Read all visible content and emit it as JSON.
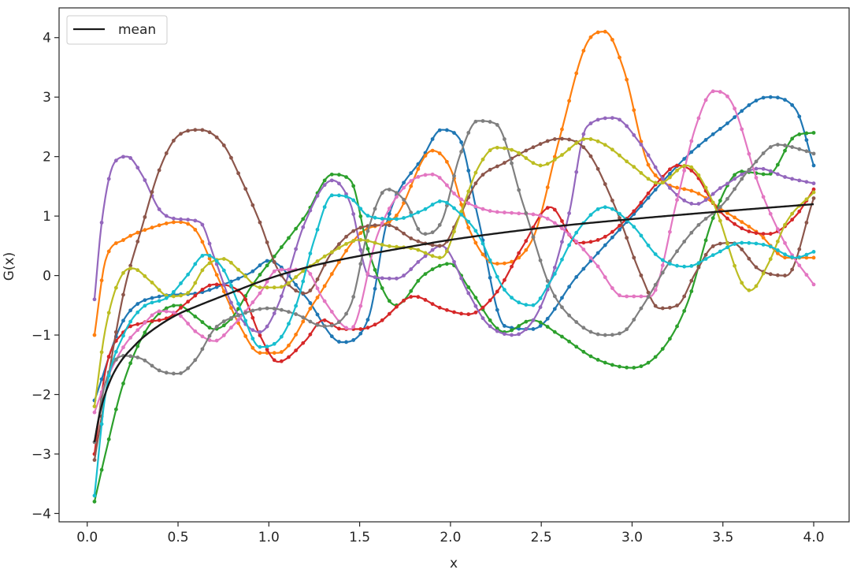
{
  "chart_data": {
    "type": "line",
    "title": "",
    "xlabel": "x",
    "ylabel": "G(x)",
    "xlim": [
      -0.155,
      4.195
    ],
    "ylim": [
      -4.14,
      4.5
    ],
    "xticks": [
      0.0,
      0.5,
      1.0,
      1.5,
      2.0,
      2.5,
      3.0,
      3.5,
      4.0
    ],
    "yticks": [
      -4,
      -3,
      -2,
      -1,
      0,
      1,
      2,
      3,
      4
    ],
    "xtick_labels": [
      "0.0",
      "0.5",
      "1.0",
      "1.5",
      "2.0",
      "2.5",
      "3.0",
      "3.5",
      "4.0"
    ],
    "ytick_labels": [
      "−4",
      "−3",
      "−2",
      "−1",
      "0",
      "1",
      "2",
      "3",
      "4"
    ],
    "grid": false,
    "legend": {
      "location": "top-left",
      "entries": [
        "mean"
      ]
    },
    "mean": {
      "name": "mean",
      "color": "#1a1a1a",
      "x": [
        0.04,
        0.06,
        0.08,
        0.1,
        0.13,
        0.16,
        0.2,
        0.25,
        0.3,
        0.4,
        0.5,
        0.6,
        0.8,
        1.0,
        1.25,
        1.5,
        1.75,
        2.0,
        2.5,
        3.0,
        3.5,
        4.0
      ],
      "y": [
        -2.8,
        -2.45,
        -2.18,
        -1.98,
        -1.74,
        -1.56,
        -1.38,
        -1.21,
        -1.06,
        -0.83,
        -0.65,
        -0.52,
        -0.28,
        -0.05,
        0.17,
        0.33,
        0.47,
        0.6,
        0.8,
        0.95,
        1.08,
        1.2
      ]
    },
    "series": [
      {
        "color": "#1f77b4",
        "x": [
          0.04,
          0.2,
          0.4,
          0.6,
          0.75,
          0.9,
          1.0,
          1.2,
          1.4,
          1.55,
          1.65,
          1.85,
          1.95,
          2.05,
          2.15,
          2.3,
          2.45,
          2.7,
          3.0,
          3.3,
          3.5,
          3.75,
          3.9,
          4.0
        ],
        "y": [
          -2.1,
          -0.75,
          -0.35,
          -0.3,
          -0.15,
          0.05,
          0.25,
          -0.35,
          -1.12,
          -0.7,
          0.9,
          2.0,
          2.45,
          2.3,
          1.0,
          -0.85,
          -0.9,
          0.0,
          1.0,
          2.0,
          2.5,
          3.0,
          2.8,
          1.85
        ]
      },
      {
        "color": "#ff7f0e",
        "x": [
          0.04,
          0.1,
          0.2,
          0.35,
          0.5,
          0.6,
          0.7,
          0.85,
          0.95,
          1.05,
          1.25,
          1.5,
          1.7,
          1.9,
          2.0,
          2.1,
          2.25,
          2.45,
          2.6,
          2.75,
          2.85,
          2.95,
          3.1,
          3.35,
          3.5,
          3.7,
          3.85,
          4.0
        ],
        "y": [
          -1.0,
          0.25,
          0.6,
          0.8,
          0.9,
          0.75,
          0.1,
          -0.9,
          -1.3,
          -1.3,
          -0.45,
          0.7,
          1.0,
          2.1,
          1.8,
          0.8,
          0.2,
          0.6,
          2.3,
          3.9,
          4.1,
          3.5,
          1.8,
          1.4,
          1.1,
          0.7,
          0.3,
          0.3
        ]
      },
      {
        "color": "#2ca02c",
        "x": [
          0.04,
          0.1,
          0.2,
          0.35,
          0.5,
          0.6,
          0.7,
          0.8,
          0.9,
          1.05,
          1.2,
          1.35,
          1.45,
          1.55,
          1.7,
          1.85,
          2.0,
          2.1,
          2.3,
          2.45,
          2.6,
          2.8,
          3.0,
          3.15,
          3.3,
          3.45,
          3.6,
          3.75,
          3.9,
          4.0
        ],
        "y": [
          -3.8,
          -3.0,
          -1.8,
          -0.8,
          -0.5,
          -0.7,
          -0.9,
          -0.7,
          -0.2,
          0.4,
          1.0,
          1.7,
          1.6,
          0.4,
          -0.5,
          0.0,
          0.2,
          -0.2,
          -0.95,
          -0.75,
          -1.0,
          -1.4,
          -1.55,
          -1.3,
          -0.5,
          1.0,
          1.75,
          1.7,
          2.35,
          2.4
        ]
      },
      {
        "color": "#d62728",
        "x": [
          0.04,
          0.1,
          0.2,
          0.3,
          0.45,
          0.55,
          0.7,
          0.85,
          0.95,
          1.05,
          1.2,
          1.3,
          1.4,
          1.5,
          1.6,
          1.8,
          1.95,
          2.1,
          2.25,
          2.4,
          2.55,
          2.7,
          2.85,
          3.0,
          3.15,
          3.25,
          3.35,
          3.45,
          3.6,
          3.75,
          3.9,
          4.0
        ],
        "y": [
          -3.0,
          -1.6,
          -0.95,
          -0.8,
          -0.7,
          -0.45,
          -0.15,
          -0.3,
          -1.0,
          -1.45,
          -1.1,
          -0.75,
          -0.9,
          -0.9,
          -0.8,
          -0.35,
          -0.55,
          -0.65,
          -0.3,
          0.5,
          1.15,
          0.55,
          0.65,
          1.05,
          1.6,
          1.85,
          1.7,
          1.2,
          0.8,
          0.7,
          1.0,
          1.45
        ]
      },
      {
        "color": "#9467bd",
        "x": [
          0.04,
          0.08,
          0.15,
          0.22,
          0.3,
          0.4,
          0.5,
          0.62,
          0.7,
          0.8,
          0.95,
          1.05,
          1.2,
          1.35,
          1.45,
          1.55,
          1.7,
          1.85,
          1.95,
          2.1,
          2.2,
          2.35,
          2.5,
          2.65,
          2.75,
          2.9,
          3.05,
          3.2,
          3.35,
          3.5,
          3.7,
          3.85,
          4.0
        ],
        "y": [
          -0.4,
          0.9,
          1.9,
          2.0,
          1.7,
          1.1,
          0.95,
          0.9,
          0.3,
          -0.5,
          -0.95,
          -0.5,
          0.9,
          1.6,
          1.2,
          0.0,
          -0.05,
          0.3,
          0.5,
          -0.3,
          -0.8,
          -1.0,
          -0.5,
          1.0,
          2.5,
          2.65,
          2.2,
          1.5,
          1.2,
          1.5,
          1.8,
          1.65,
          1.55
        ]
      },
      {
        "color": "#8c564b",
        "x": [
          0.04,
          0.1,
          0.2,
          0.3,
          0.4,
          0.5,
          0.62,
          0.75,
          0.85,
          0.95,
          1.05,
          1.2,
          1.35,
          1.5,
          1.65,
          1.8,
          1.95,
          2.05,
          2.15,
          2.3,
          2.45,
          2.6,
          2.75,
          2.9,
          3.05,
          3.15,
          3.25,
          3.35,
          3.45,
          3.55,
          3.7,
          3.85,
          4.0
        ],
        "y": [
          -3.1,
          -2.0,
          -0.3,
          0.8,
          1.8,
          2.35,
          2.45,
          2.2,
          1.6,
          0.9,
          0.1,
          -0.3,
          0.4,
          0.8,
          0.85,
          0.6,
          0.5,
          1.0,
          1.6,
          1.9,
          2.15,
          2.3,
          2.1,
          1.2,
          0.0,
          -0.55,
          -0.5,
          0.05,
          0.5,
          0.55,
          0.1,
          0.0,
          1.3
        ]
      },
      {
        "color": "#e377c2",
        "x": [
          0.04,
          0.1,
          0.2,
          0.3,
          0.4,
          0.5,
          0.6,
          0.7,
          0.8,
          0.95,
          1.05,
          1.2,
          1.3,
          1.45,
          1.6,
          1.75,
          1.9,
          2.05,
          2.2,
          2.35,
          2.5,
          2.65,
          2.8,
          2.95,
          3.1,
          3.25,
          3.35,
          3.45,
          3.55,
          3.7,
          3.85,
          4.0
        ],
        "y": [
          -2.3,
          -1.8,
          -1.2,
          -0.85,
          -0.6,
          -0.65,
          -0.95,
          -1.1,
          -0.85,
          -0.3,
          0.1,
          0.1,
          -0.4,
          -0.9,
          0.7,
          1.5,
          1.7,
          1.3,
          1.1,
          1.05,
          1.0,
          0.7,
          0.2,
          -0.35,
          -0.35,
          1.3,
          2.5,
          3.1,
          2.9,
          1.5,
          0.5,
          -0.15
        ]
      },
      {
        "color": "#7f7f7f",
        "x": [
          0.04,
          0.1,
          0.2,
          0.3,
          0.4,
          0.5,
          0.6,
          0.7,
          0.85,
          1.0,
          1.15,
          1.3,
          1.45,
          1.55,
          1.65,
          1.75,
          1.85,
          1.95,
          2.05,
          2.15,
          2.25,
          2.4,
          2.55,
          2.7,
          2.85,
          2.95,
          3.05,
          3.2,
          3.35,
          3.5,
          3.65,
          3.8,
          3.95,
          4.0
        ],
        "y": [
          -2.8,
          -1.8,
          -1.35,
          -1.4,
          -1.6,
          -1.65,
          -1.4,
          -0.9,
          -0.65,
          -0.55,
          -0.65,
          -0.85,
          -0.5,
          0.8,
          1.45,
          1.25,
          0.7,
          0.9,
          2.0,
          2.6,
          2.55,
          1.2,
          -0.2,
          -0.8,
          -1.0,
          -0.95,
          -0.55,
          0.2,
          0.8,
          1.2,
          1.8,
          2.2,
          2.1,
          2.05
        ]
      },
      {
        "color": "#bcbd22",
        "x": [
          0.04,
          0.1,
          0.2,
          0.25,
          0.35,
          0.45,
          0.55,
          0.65,
          0.75,
          0.85,
          0.95,
          1.05,
          1.2,
          1.35,
          1.5,
          1.65,
          1.8,
          1.95,
          2.05,
          2.15,
          2.25,
          2.35,
          2.5,
          2.6,
          2.75,
          2.85,
          3.0,
          3.15,
          3.3,
          3.45,
          3.6,
          3.65,
          3.75,
          3.85,
          4.0
        ],
        "y": [
          -2.2,
          -0.9,
          0.05,
          0.12,
          -0.1,
          -0.35,
          -0.3,
          0.15,
          0.28,
          0.05,
          -0.2,
          -0.2,
          0.1,
          0.4,
          0.6,
          0.5,
          0.45,
          0.3,
          1.0,
          1.8,
          2.15,
          2.1,
          1.85,
          2.0,
          2.3,
          2.2,
          1.85,
          1.55,
          1.85,
          1.2,
          -0.1,
          -0.25,
          0.2,
          0.9,
          1.4
        ]
      },
      {
        "color": "#17becf",
        "x": [
          0.04,
          0.1,
          0.2,
          0.3,
          0.45,
          0.55,
          0.65,
          0.75,
          0.85,
          0.95,
          1.05,
          1.15,
          1.25,
          1.35,
          1.45,
          1.55,
          1.7,
          1.85,
          1.95,
          2.05,
          2.15,
          2.3,
          2.45,
          2.55,
          2.7,
          2.85,
          3.0,
          3.15,
          3.3,
          3.45,
          3.6,
          3.75,
          3.9,
          4.0
        ],
        "y": [
          -3.7,
          -2.0,
          -1.0,
          -0.55,
          -0.35,
          0.0,
          0.35,
          0.1,
          -0.6,
          -1.2,
          -1.1,
          -0.5,
          0.6,
          1.35,
          1.3,
          1.0,
          0.95,
          1.1,
          1.25,
          1.05,
          0.7,
          -0.25,
          -0.5,
          -0.1,
          0.75,
          1.15,
          0.85,
          0.3,
          0.15,
          0.35,
          0.55,
          0.5,
          0.3,
          0.4
        ]
      }
    ]
  }
}
